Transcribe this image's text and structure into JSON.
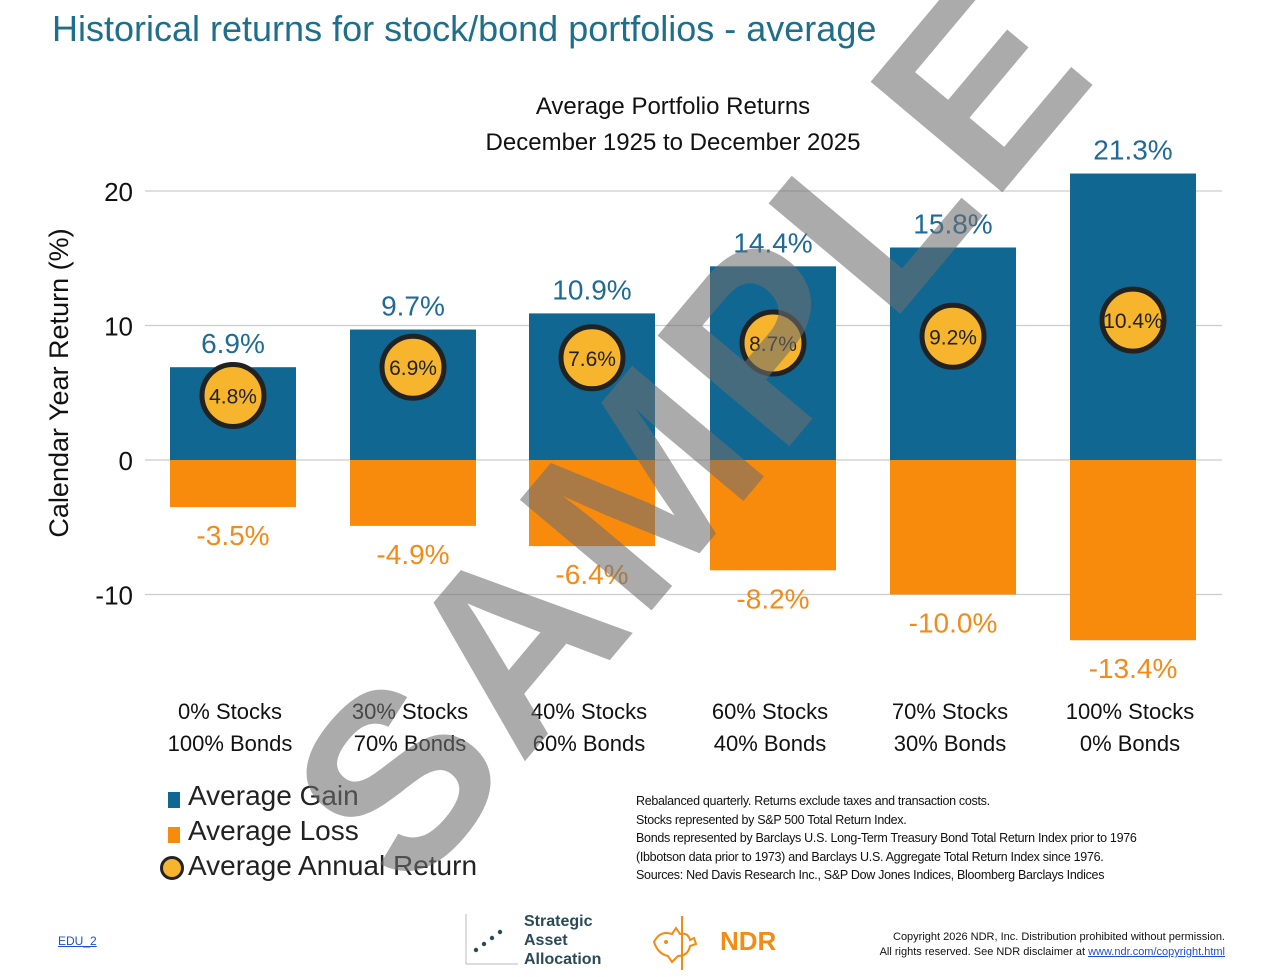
{
  "page": {
    "title": "Historical returns for stock/bond portfolios - average",
    "watermark": "SAMPLE",
    "footer_link": "EDU_2"
  },
  "chart_data": {
    "type": "bar",
    "title_lines": [
      "Average Portfolio Returns",
      "December 1925 to December 2025"
    ],
    "ylabel": "Calendar Year Return (%)",
    "ylim": [
      -15,
      22
    ],
    "yticks": [
      20,
      10,
      0,
      -10
    ],
    "ytick_labels": [
      "20",
      "10",
      "0",
      "-10"
    ],
    "categories": [
      [
        "0% Stocks",
        "100% Bonds"
      ],
      [
        "30% Stocks",
        "70% Bonds"
      ],
      [
        "40% Stocks",
        "60% Bonds"
      ],
      [
        "60% Stocks",
        "40% Bonds"
      ],
      [
        "70% Stocks",
        "30% Bonds"
      ],
      [
        "100% Stocks",
        "0% Bonds"
      ]
    ],
    "series": [
      {
        "name": "Average Gain",
        "color": "#0f6792",
        "label_color": "#1f6a97",
        "values": [
          6.9,
          9.7,
          10.9,
          14.4,
          15.8,
          21.3
        ],
        "labels": [
          "6.9%",
          "9.7%",
          "10.9%",
          "14.4%",
          "15.8%",
          "21.3%"
        ]
      },
      {
        "name": "Average Loss",
        "color": "#f98b0c",
        "label_color": "#f48a18",
        "values": [
          -3.5,
          -4.9,
          -6.4,
          -8.2,
          -10.0,
          -13.4
        ],
        "labels": [
          "-3.5%",
          "-4.9%",
          "-6.4%",
          "-8.2%",
          "-10.0%",
          "-13.4%"
        ]
      },
      {
        "name": "Average Annual Return",
        "color": "#f6b52d",
        "values": [
          4.8,
          6.9,
          7.6,
          8.7,
          9.2,
          10.4
        ],
        "labels": [
          "4.8%",
          "6.9%",
          "7.6%",
          "8.7%",
          "9.2%",
          "10.4%"
        ]
      }
    ],
    "grid": true,
    "legend_placement": "bottom-left"
  },
  "notes": [
    "Rebalanced quarterly. Returns exclude taxes and transaction costs.",
    "Stocks represented by S&P 500 Total Return Index.",
    "Bonds represented by Barclays U.S. Long-Term Treasury Bond Total Return Index prior to 1976",
    "(Ibbotson data prior to 1973) and Barclays U.S. Aggregate Total Return Index since 1976.",
    "Sources: Ned Davis Research Inc., S&P Dow Jones Indices, Bloomberg Barclays Indices"
  ],
  "logos": {
    "saa_lines": [
      "Strategic",
      "Asset",
      "Allocation"
    ],
    "ndr": "NDR"
  },
  "copyright": {
    "line1": "Copyright 2026 NDR, Inc. Distribution prohibited without permission.",
    "line2_prefix": "All rights reserved. See NDR disclaimer at ",
    "line2_url": "www.ndr.com/copyright.html"
  }
}
